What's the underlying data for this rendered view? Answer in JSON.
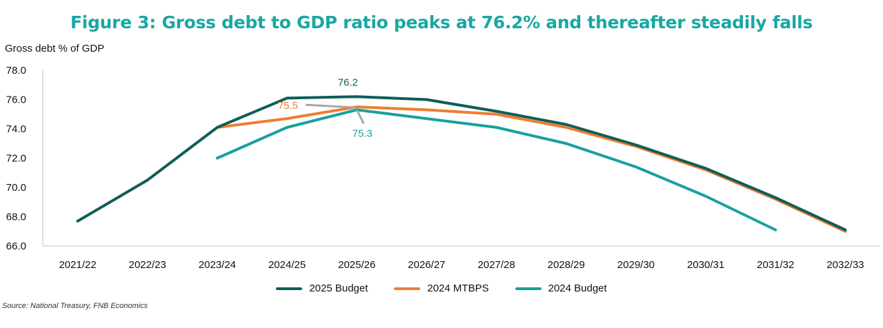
{
  "page": {
    "title": "Figure 3: Gross debt to GDP ratio peaks at 76.2% and thereafter steadily falls",
    "source": "Source: National Treasury, FNB Economics"
  },
  "chart_data": {
    "type": "line",
    "title": "Figure 3: Gross debt to GDP ratio peaks at 76.2% and thereafter steadily falls",
    "ylabel": "Gross debt % of GDP",
    "xlabel": "",
    "ylim": [
      66.0,
      78.0
    ],
    "yticks": [
      "66.0",
      "68.0",
      "70.0",
      "72.0",
      "74.0",
      "76.0",
      "78.0"
    ],
    "categories": [
      "2021/22",
      "2022/23",
      "2023/24",
      "2024/25",
      "2025/26",
      "2026/27",
      "2027/28",
      "2028/29",
      "2029/30",
      "2030/31",
      "2031/32",
      "2032/33"
    ],
    "legend_position": "bottom",
    "grid": false,
    "series": [
      {
        "name": "2025 Budget",
        "color": "#0e5e57",
        "values": [
          67.7,
          70.5,
          74.1,
          76.1,
          76.2,
          76.0,
          75.2,
          74.3,
          72.9,
          71.3,
          69.3,
          67.1
        ]
      },
      {
        "name": "2024 MTBPS",
        "color": "#ee7d31",
        "values": [
          null,
          null,
          74.1,
          74.7,
          75.5,
          75.3,
          75.0,
          74.1,
          72.8,
          71.2,
          69.2,
          67.0
        ]
      },
      {
        "name": "2024 Budget",
        "color": "#17a19d",
        "values": [
          null,
          null,
          72.0,
          74.1,
          75.3,
          74.7,
          74.1,
          73.0,
          71.4,
          69.4,
          67.1,
          null
        ]
      }
    ],
    "annotations": [
      {
        "text": "76.2",
        "series": "2025 Budget",
        "category": "2025/26",
        "color": "#0e5e57"
      },
      {
        "text": "75.5",
        "series": "2024 MTBPS",
        "category": "2025/26",
        "color": "#ee7d31"
      },
      {
        "text": "75.3",
        "series": "2024 Budget",
        "category": "2025/26",
        "color": "#17a19d"
      }
    ]
  }
}
